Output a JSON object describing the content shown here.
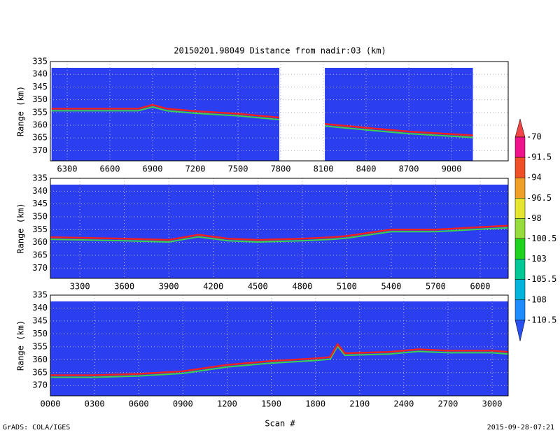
{
  "title": "20150201.98049    Distance from nadir:03 (km)",
  "x_label": "Scan #",
  "footer_left": "GrADS: COLA/IGES",
  "footer_right": "2015-09-28-07:21",
  "colorbar": {
    "levels": [
      -70,
      -91.5,
      -94,
      -96.5,
      -98,
      -100.5,
      -103,
      -105.5,
      -108,
      -110.5
    ],
    "colors": [
      "#f04646",
      "#f0148c",
      "#f05028",
      "#f0a028",
      "#e6e632",
      "#96dc3c",
      "#1ed21e",
      "#00c896",
      "#00b4dc",
      "#1e8cff",
      "#2850f0"
    ]
  },
  "chart_data": [
    {
      "type": "line",
      "y_label": "Range (km)",
      "color": "#f02020",
      "grid": true,
      "y_inverted": true,
      "xlim": [
        6182,
        9398
      ],
      "ylim": [
        374,
        335
      ],
      "xticks": [
        6300,
        6600,
        6900,
        7200,
        7500,
        7800,
        8100,
        8400,
        8700,
        9000
      ],
      "yticks": [
        335,
        340,
        345,
        350,
        355,
        360,
        365,
        370
      ],
      "x": [
        6190,
        6300,
        6800,
        6900,
        7000,
        7200,
        7500,
        7790,
        7950,
        8110,
        8400,
        8700,
        9000,
        9150
      ],
      "values": [
        353.5,
        353.5,
        353.5,
        352,
        353.5,
        354.5,
        355.5,
        357,
        null,
        359.5,
        361,
        362.5,
        363.5,
        364
      ]
    },
    {
      "type": "line",
      "y_label": "Range (km)",
      "color": "#f02020",
      "grid": true,
      "y_inverted": true,
      "xlim": [
        3101,
        6189
      ],
      "ylim": [
        374,
        335
      ],
      "xticks": [
        3300,
        3600,
        3900,
        4200,
        4500,
        4800,
        5100,
        5400,
        5700,
        6000
      ],
      "yticks": [
        335,
        340,
        345,
        350,
        355,
        360,
        365,
        370
      ],
      "x": [
        3101,
        3600,
        3900,
        4100,
        4300,
        4500,
        4800,
        5000,
        5100,
        5400,
        5700,
        6000,
        6189
      ],
      "values": [
        358,
        358.5,
        359,
        357,
        358.5,
        359,
        358.5,
        358,
        357.5,
        355,
        355,
        354,
        353.5
      ]
    },
    {
      "type": "line",
      "y_label": "Range (km)",
      "color": "#f02020",
      "grid": true,
      "y_inverted": true,
      "xlim": [
        0,
        3109
      ],
      "ylim": [
        374,
        335
      ],
      "xticks": [
        {
          "value": 0,
          "label": "0000"
        },
        {
          "value": 300,
          "label": "0300"
        },
        {
          "value": 600,
          "label": "0600"
        },
        {
          "value": 900,
          "label": "0900"
        },
        1200,
        1500,
        1800,
        2100,
        2400,
        2700,
        3000
      ],
      "yticks": [
        335,
        340,
        345,
        350,
        355,
        360,
        365,
        370
      ],
      "x": [
        0,
        300,
        600,
        900,
        1200,
        1500,
        1800,
        1900,
        1950,
        2000,
        2300,
        2500,
        2700,
        3000,
        3109
      ],
      "values": [
        366,
        366,
        365.5,
        364.5,
        362,
        360.5,
        359.5,
        359,
        354,
        357.5,
        357,
        356,
        356.5,
        356.5,
        357
      ]
    }
  ]
}
